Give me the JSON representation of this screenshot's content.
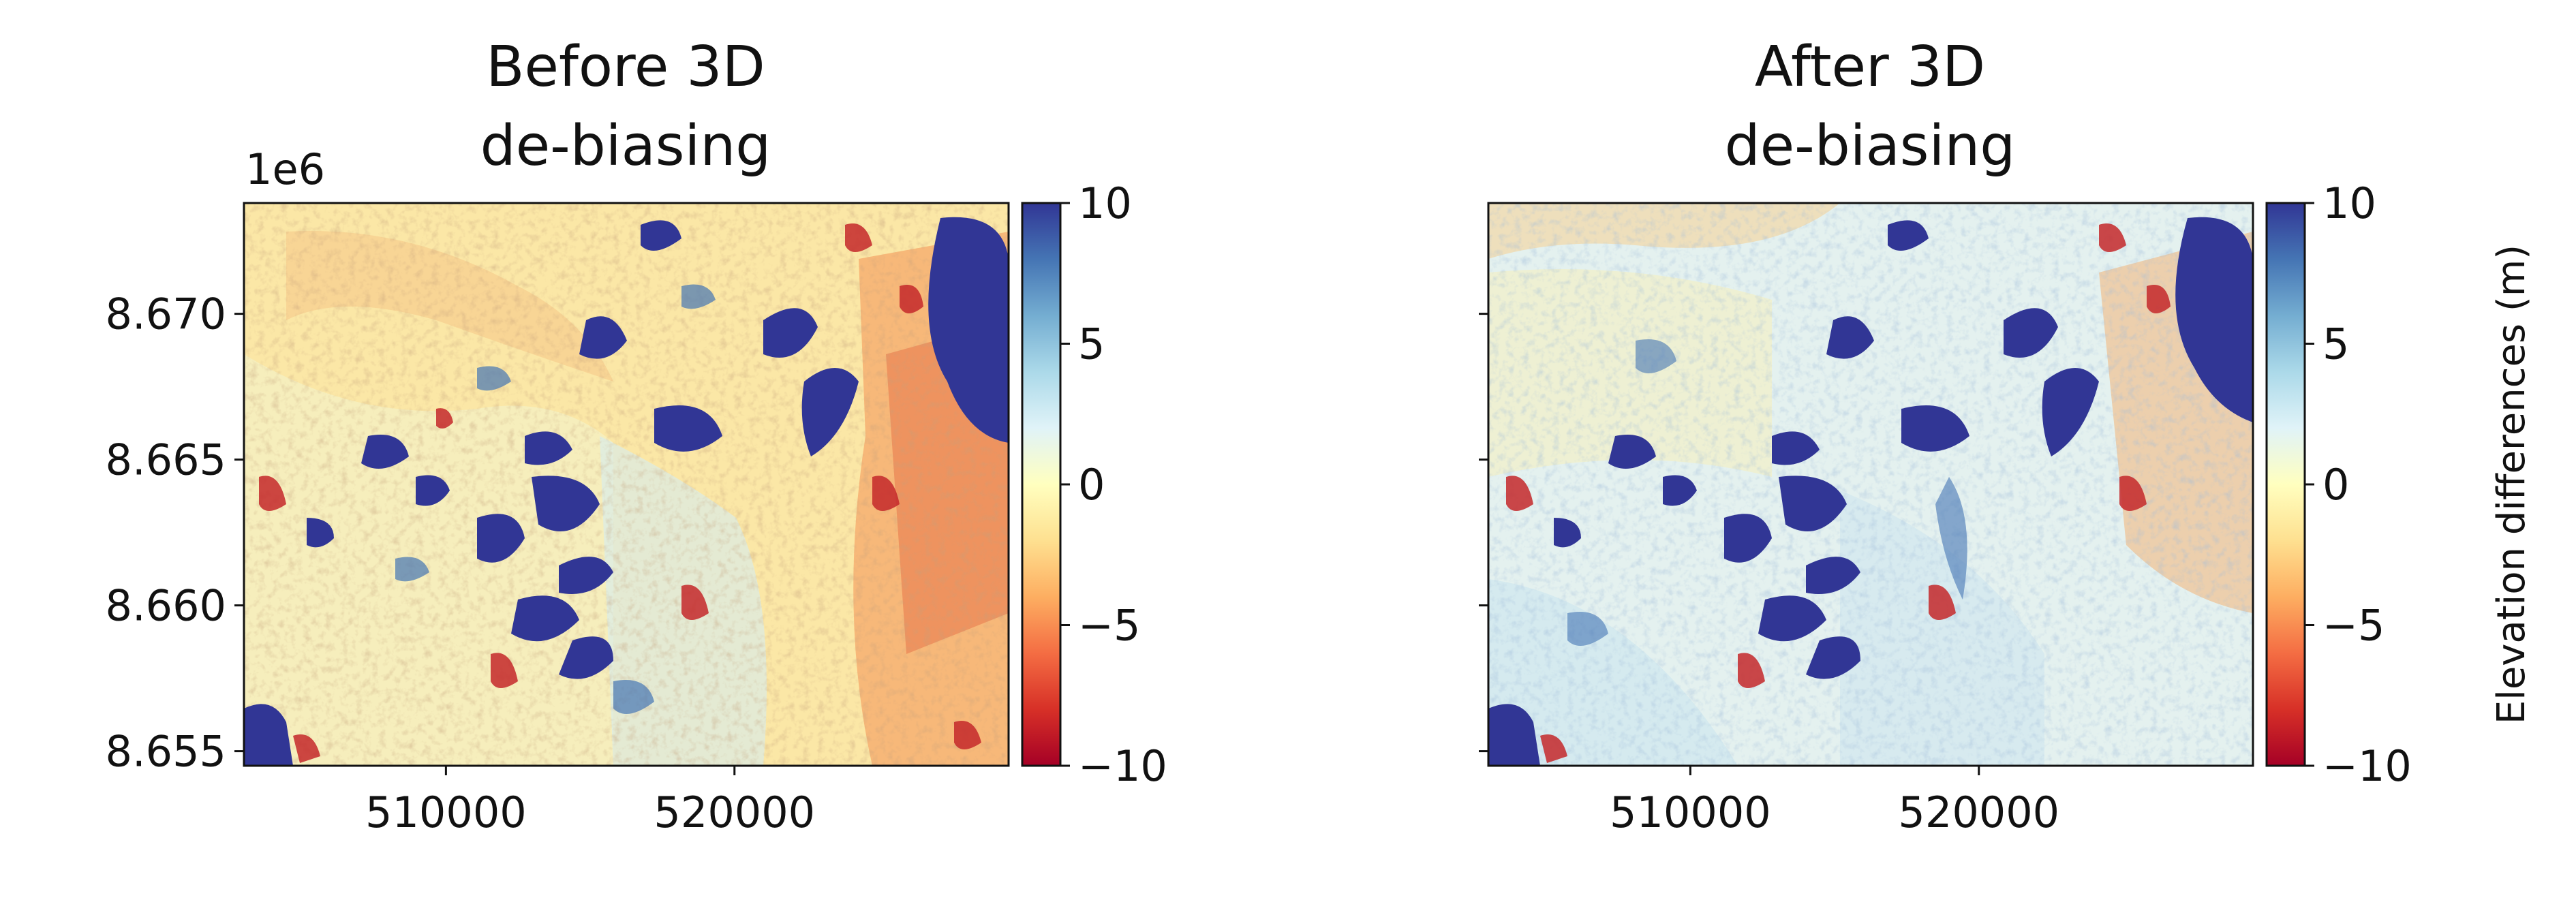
{
  "chart_data": [
    {
      "type": "heatmap",
      "title_lines": [
        "Before 3D",
        "de-biasing"
      ],
      "x_ticks": [
        510000,
        520000
      ],
      "x_tick_labels": [
        "510000",
        "520000"
      ],
      "xlim": [
        503000,
        529500
      ],
      "y_offset_label": "1e6",
      "y_ticks": [
        8.67,
        8.665,
        8.66,
        8.655
      ],
      "y_tick_labels": [
        "8.670",
        "8.665",
        "8.660",
        "8.655"
      ],
      "ylim": [
        8.6545,
        8.6738
      ],
      "colormap": "RdYlBu",
      "color_range": [
        -10,
        10
      ],
      "colorbar_ticks": [
        10,
        5,
        0,
        -5,
        -10
      ],
      "colorbar_tick_labels": [
        "10",
        "5",
        "0",
        "−5",
        "−10"
      ],
      "colorbar_label": ""
    },
    {
      "type": "heatmap",
      "title_lines": [
        "After 3D",
        "de-biasing"
      ],
      "x_ticks": [
        510000,
        520000
      ],
      "x_tick_labels": [
        "510000",
        "520000"
      ],
      "xlim": [
        503000,
        529500
      ],
      "y_ticks": [
        8.67,
        8.665,
        8.66,
        8.655
      ],
      "ylim": [
        8.6545,
        8.6738
      ],
      "colormap": "RdYlBu",
      "color_range": [
        -10,
        10
      ],
      "colorbar_ticks": [
        10,
        5,
        0,
        -5,
        -10
      ],
      "colorbar_tick_labels": [
        "10",
        "5",
        "0",
        "−5",
        "−10"
      ],
      "colorbar_label": "Elevation differences (m)"
    }
  ]
}
